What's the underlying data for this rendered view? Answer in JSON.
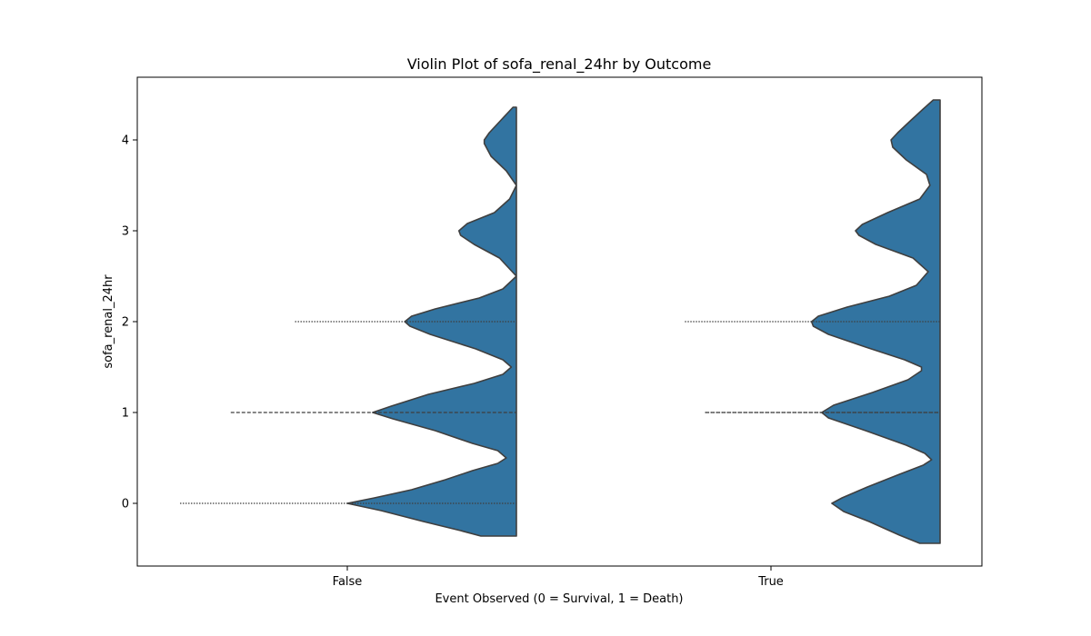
{
  "chart_data": {
    "type": "violin",
    "title": "Violin Plot of sofa_renal_24hr by Outcome",
    "xlabel": "Event Observed (0 = Survival, 1 = Death)",
    "ylabel": "sofa_renal_24hr",
    "categories": [
      "False",
      "True"
    ],
    "ylim": [
      -0.7,
      4.7
    ],
    "yticks": [
      0,
      1,
      2,
      3,
      4
    ],
    "grid": false,
    "series_color": "#3274a1",
    "edge_color": "#3f3f3f",
    "violins": [
      {
        "category": "False",
        "y_range": [
          -0.36,
          4.36
        ],
        "quartiles": [
          0,
          1,
          2
        ],
        "density_profile": [
          [
            -0.36,
            0.21
          ],
          [
            -0.3,
            0.33
          ],
          [
            -0.2,
            0.55
          ],
          [
            -0.08,
            0.8
          ],
          [
            0.0,
            1.0
          ],
          [
            0.06,
            0.84
          ],
          [
            0.15,
            0.62
          ],
          [
            0.26,
            0.42
          ],
          [
            0.36,
            0.26
          ],
          [
            0.44,
            0.11
          ],
          [
            0.5,
            0.06
          ],
          [
            0.58,
            0.11
          ],
          [
            0.66,
            0.26
          ],
          [
            0.8,
            0.48
          ],
          [
            0.93,
            0.73
          ],
          [
            1.0,
            0.85
          ],
          [
            1.07,
            0.74
          ],
          [
            1.2,
            0.52
          ],
          [
            1.32,
            0.25
          ],
          [
            1.42,
            0.08
          ],
          [
            1.5,
            0.03
          ],
          [
            1.58,
            0.08
          ],
          [
            1.7,
            0.24
          ],
          [
            1.86,
            0.51
          ],
          [
            1.95,
            0.63
          ],
          [
            2.0,
            0.66
          ],
          [
            2.06,
            0.62
          ],
          [
            2.14,
            0.48
          ],
          [
            2.26,
            0.22
          ],
          [
            2.36,
            0.08
          ],
          [
            2.5,
            0.0
          ],
          [
            2.7,
            0.1
          ],
          [
            2.85,
            0.25
          ],
          [
            2.95,
            0.33
          ],
          [
            3.0,
            0.34
          ],
          [
            3.08,
            0.29
          ],
          [
            3.2,
            0.13
          ],
          [
            3.35,
            0.04
          ],
          [
            3.5,
            0.0
          ],
          [
            3.66,
            0.06
          ],
          [
            3.82,
            0.15
          ],
          [
            3.96,
            0.19
          ],
          [
            4.0,
            0.19
          ],
          [
            4.08,
            0.16
          ],
          [
            4.2,
            0.1
          ],
          [
            4.3,
            0.05
          ],
          [
            4.36,
            0.02
          ]
        ]
      },
      {
        "category": "True",
        "y_range": [
          -0.44,
          4.44
        ],
        "quartiles": [
          1,
          1,
          2
        ],
        "density_profile": [
          [
            -0.44,
            0.12
          ],
          [
            -0.35,
            0.24
          ],
          [
            -0.2,
            0.42
          ],
          [
            -0.09,
            0.57
          ],
          [
            0.0,
            0.64
          ],
          [
            0.06,
            0.58
          ],
          [
            0.18,
            0.43
          ],
          [
            0.32,
            0.24
          ],
          [
            0.42,
            0.1
          ],
          [
            0.48,
            0.05
          ],
          [
            0.55,
            0.09
          ],
          [
            0.64,
            0.2
          ],
          [
            0.8,
            0.44
          ],
          [
            0.94,
            0.66
          ],
          [
            1.0,
            0.7
          ],
          [
            1.08,
            0.63
          ],
          [
            1.22,
            0.4
          ],
          [
            1.36,
            0.19
          ],
          [
            1.46,
            0.11
          ],
          [
            1.5,
            0.11
          ],
          [
            1.58,
            0.21
          ],
          [
            1.72,
            0.44
          ],
          [
            1.86,
            0.66
          ],
          [
            1.95,
            0.75
          ],
          [
            2.0,
            0.76
          ],
          [
            2.06,
            0.72
          ],
          [
            2.16,
            0.55
          ],
          [
            2.28,
            0.3
          ],
          [
            2.4,
            0.14
          ],
          [
            2.55,
            0.07
          ],
          [
            2.7,
            0.16
          ],
          [
            2.85,
            0.38
          ],
          [
            2.95,
            0.48
          ],
          [
            3.0,
            0.5
          ],
          [
            3.07,
            0.46
          ],
          [
            3.2,
            0.31
          ],
          [
            3.35,
            0.12
          ],
          [
            3.5,
            0.06
          ],
          [
            3.62,
            0.08
          ],
          [
            3.78,
            0.2
          ],
          [
            3.92,
            0.28
          ],
          [
            4.0,
            0.29
          ],
          [
            4.08,
            0.25
          ],
          [
            4.22,
            0.17
          ],
          [
            4.34,
            0.1
          ],
          [
            4.44,
            0.04
          ]
        ]
      }
    ]
  }
}
